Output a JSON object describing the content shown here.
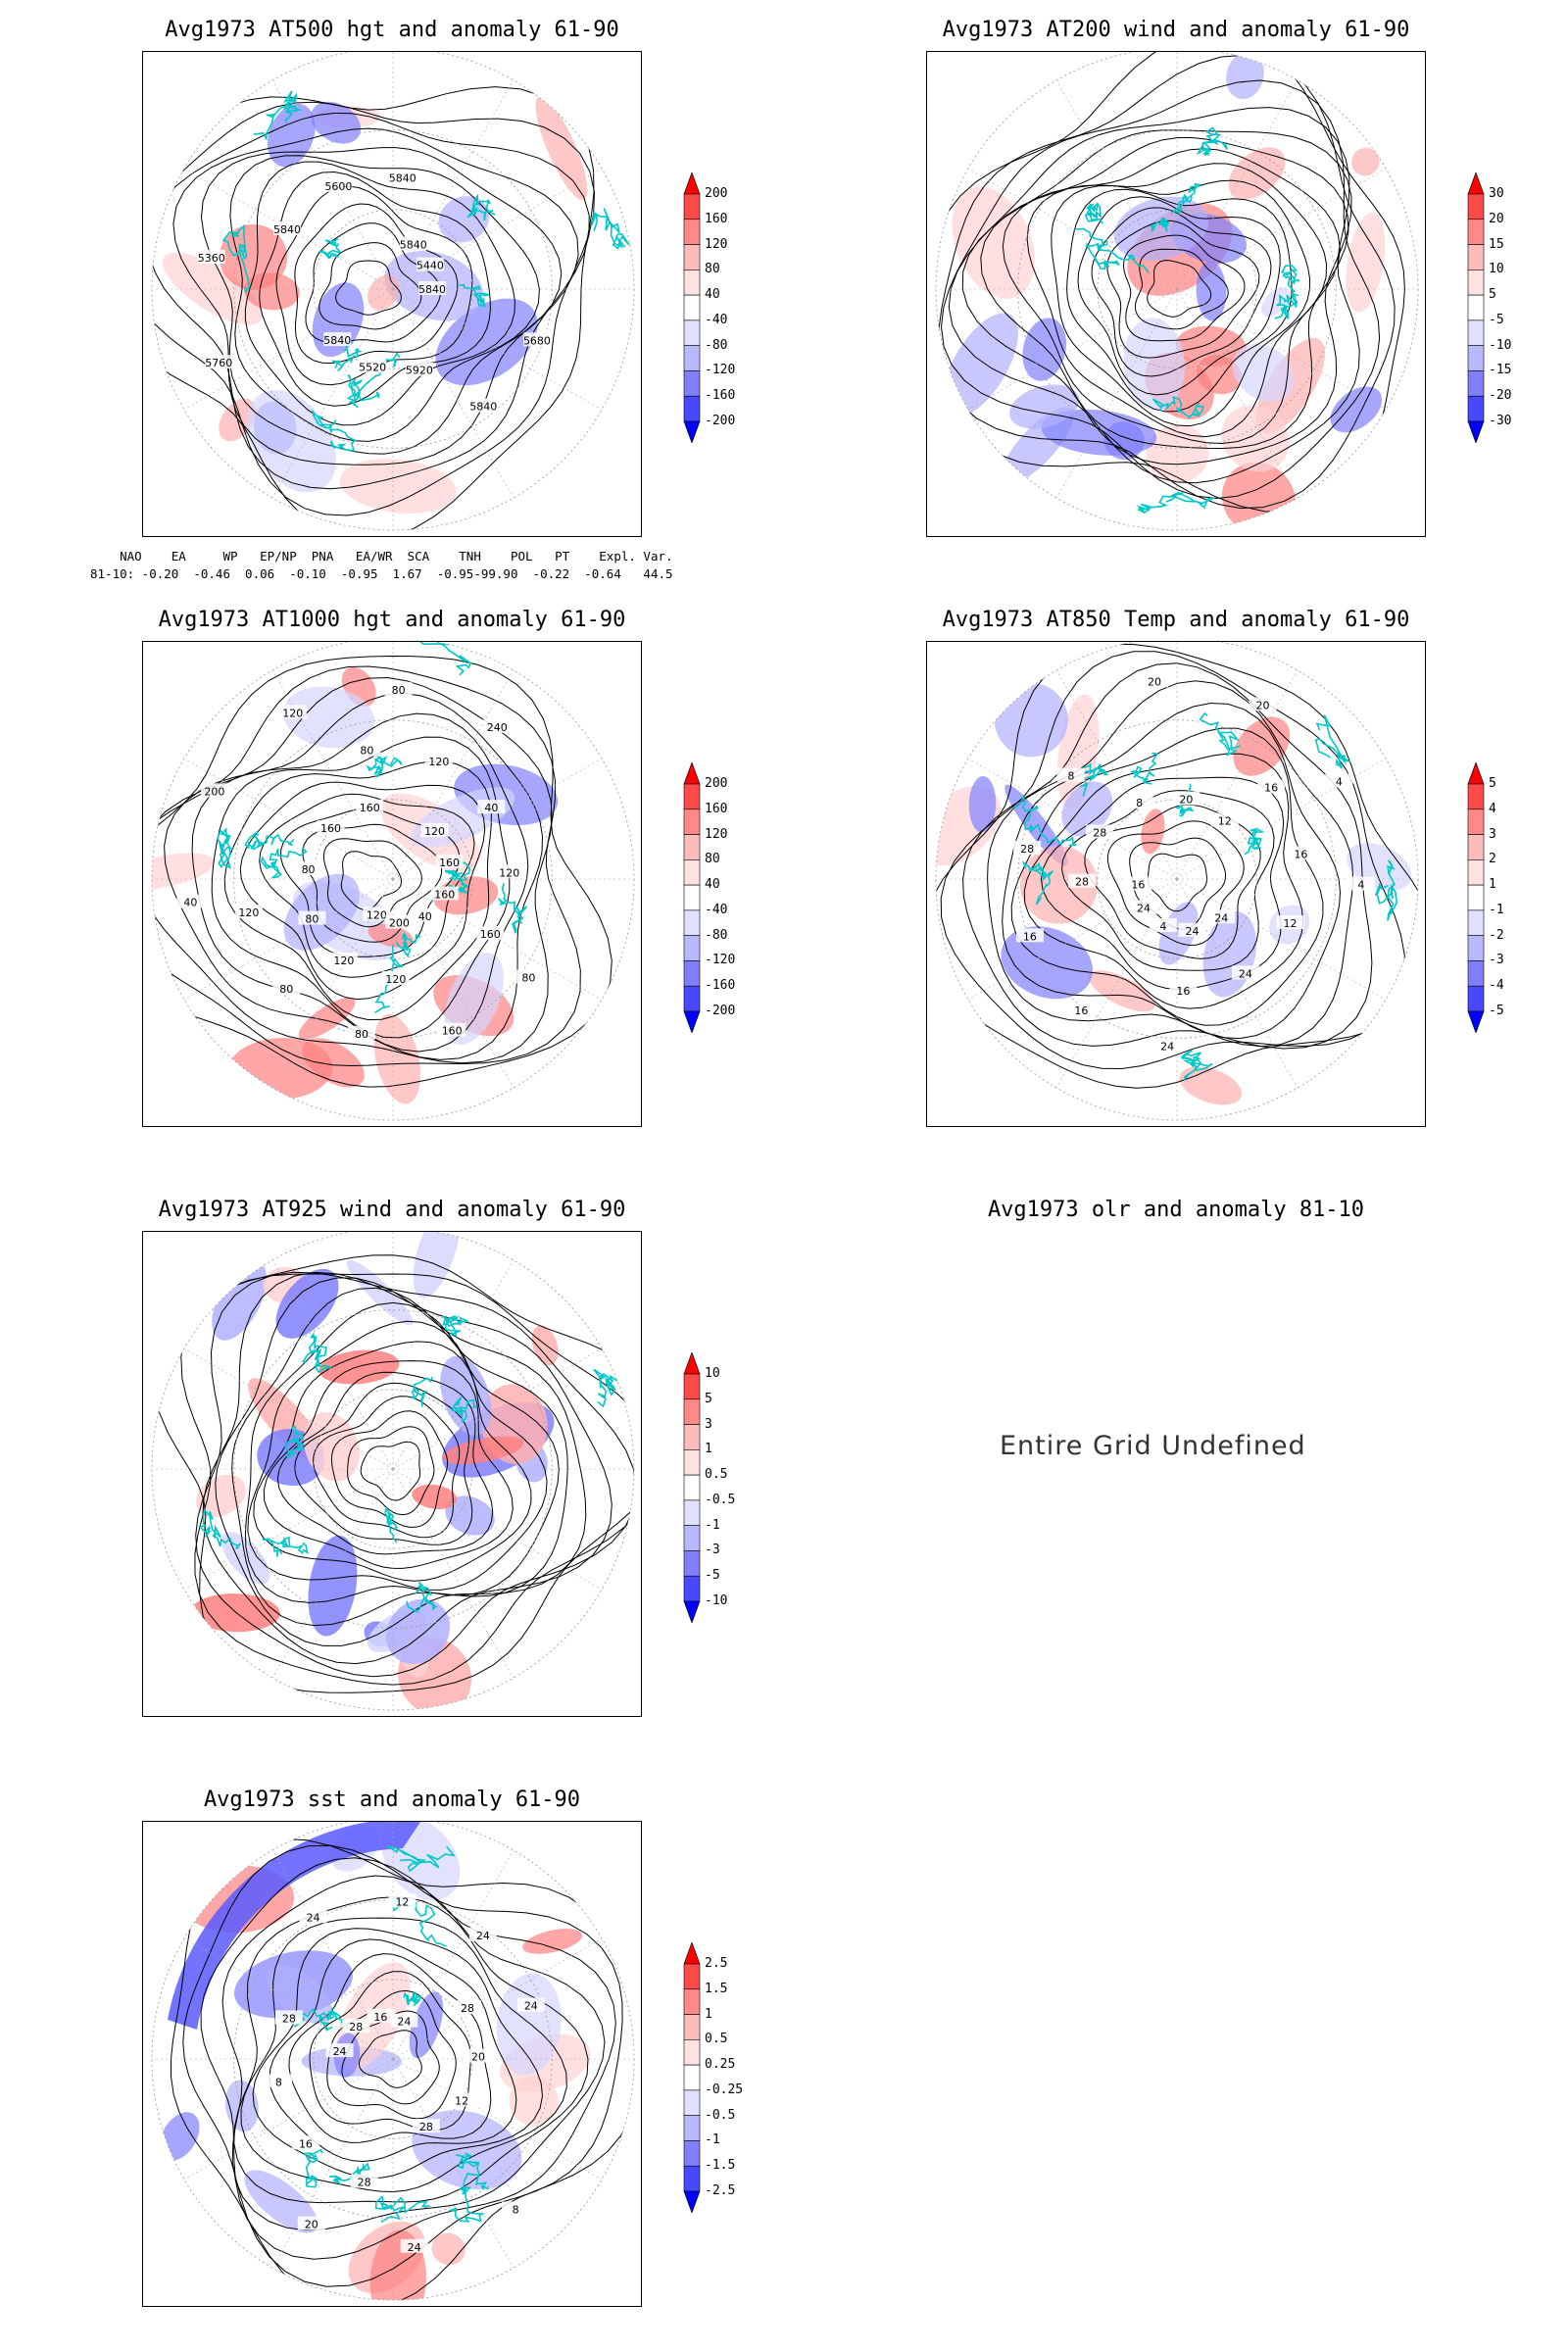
{
  "panels": [
    {
      "id": "p500",
      "title": "Avg1973 AT500 hgt and anomaly 61-90",
      "legend": [
        "200",
        "160",
        "120",
        "80",
        "40",
        "-40",
        "-80",
        "-120",
        "-160",
        "-200"
      ],
      "colors": [
        "#ff0000",
        "#ff4a4a",
        "#ff8888",
        "#ffbcbc",
        "#ffe2e2",
        "#ffffff",
        "#e0e0ff",
        "#b8b8ff",
        "#8080ff",
        "#4848ff",
        "#0000ff"
      ],
      "contour_labels": [
        "5840",
        "5840",
        "5840",
        "5840",
        "5360",
        "5440",
        "5520",
        "5600",
        "5680",
        "5760",
        "5840",
        "5920",
        "5840"
      ]
    },
    {
      "id": "p200",
      "title": "Avg1973 AT200 wind and anomaly 61-90",
      "legend": [
        "30",
        "20",
        "15",
        "10",
        "5",
        "-5",
        "-10",
        "-15",
        "-20",
        "-30"
      ],
      "colors": [
        "#ff0000",
        "#ff4a4a",
        "#ff8888",
        "#ffbcbc",
        "#ffe2e2",
        "#ffffff",
        "#e0e0ff",
        "#b8b8ff",
        "#8080ff",
        "#4848ff",
        "#0000ff"
      ],
      "contour_labels": []
    },
    {
      "id": "p1000",
      "title": "Avg1973 AT1000 hgt and anomaly 61-90",
      "legend": [
        "200",
        "160",
        "120",
        "80",
        "40",
        "-40",
        "-80",
        "-120",
        "-160",
        "-200"
      ],
      "colors": [
        "#ff0000",
        "#ff4a4a",
        "#ff8888",
        "#ffbcbc",
        "#ffe2e2",
        "#ffffff",
        "#e0e0ff",
        "#b8b8ff",
        "#8080ff",
        "#4848ff",
        "#0000ff"
      ],
      "contour_labels": [
        "120",
        "160",
        "160",
        "120",
        "240",
        "200",
        "160",
        "120",
        "80",
        "80",
        "40",
        "80",
        "40",
        "80",
        "120",
        "160",
        "80",
        "120",
        "160",
        "200",
        "160",
        "120",
        "80",
        "80",
        "40",
        "120",
        "120"
      ]
    },
    {
      "id": "p850",
      "title": "Avg1973 AT850 Temp and anomaly 61-90",
      "legend": [
        "5",
        "4",
        "3",
        "2",
        "1",
        "-1",
        "-2",
        "-3",
        "-4",
        "-5"
      ],
      "colors": [
        "#ff0000",
        "#ff4a4a",
        "#ff8888",
        "#ffbcbc",
        "#ffe2e2",
        "#ffffff",
        "#e0e0ff",
        "#b8b8ff",
        "#8080ff",
        "#4848ff",
        "#0000ff"
      ],
      "contour_labels": [
        "16",
        "12",
        "16",
        "8",
        "4",
        "24",
        "20",
        "24",
        "28",
        "4",
        "4",
        "8",
        "12",
        "16",
        "20",
        "24",
        "28",
        "16",
        "16",
        "20",
        "24",
        "28",
        "16",
        "24"
      ]
    },
    {
      "id": "p925",
      "title": "Avg1973 AT925 wind and anomaly 61-90",
      "legend": [
        "10",
        "5",
        "3",
        "1",
        "0.5",
        "-0.5",
        "-1",
        "-3",
        "-5",
        "-10"
      ],
      "colors": [
        "#ff0000",
        "#ff4a4a",
        "#ff8888",
        "#ffbcbc",
        "#ffe2e2",
        "#ffffff",
        "#e0e0ff",
        "#b8b8ff",
        "#8080ff",
        "#4848ff",
        "#0000ff"
      ],
      "contour_labels": []
    },
    {
      "id": "psst",
      "title": "Avg1973 sst and anomaly 61-90",
      "legend": [
        "2.5",
        "1.5",
        "1",
        "0.5",
        "0.25",
        "-0.25",
        "-0.5",
        "-1",
        "-1.5",
        "-2.5"
      ],
      "colors": [
        "#ff0000",
        "#ff4a4a",
        "#ff8888",
        "#ffbcbc",
        "#ffe2e2",
        "#ffffff",
        "#e0e0ff",
        "#b8b8ff",
        "#8080ff",
        "#4848ff",
        "#0000ff"
      ],
      "contour_labels": [
        "24",
        "28",
        "28",
        "24",
        "20",
        "16",
        "12",
        "8",
        "24",
        "24",
        "28",
        "20",
        "16",
        "12",
        "8",
        "24",
        "28",
        "28",
        "24"
      ]
    }
  ],
  "olr": {
    "title": "Avg1973 olr and anomaly 81-10",
    "message": "Entire Grid Undefined"
  },
  "index_table": {
    "header": "    NAO    EA     WP   EP/NP  PNA   EA/WR  SCA    TNH    POL   PT    Expl. Var.",
    "row": "81-10: -0.20  -0.46  0.06  -0.10  -0.95  1.67  -0.95-99.90  -0.22  -0.64   44.5"
  }
}
